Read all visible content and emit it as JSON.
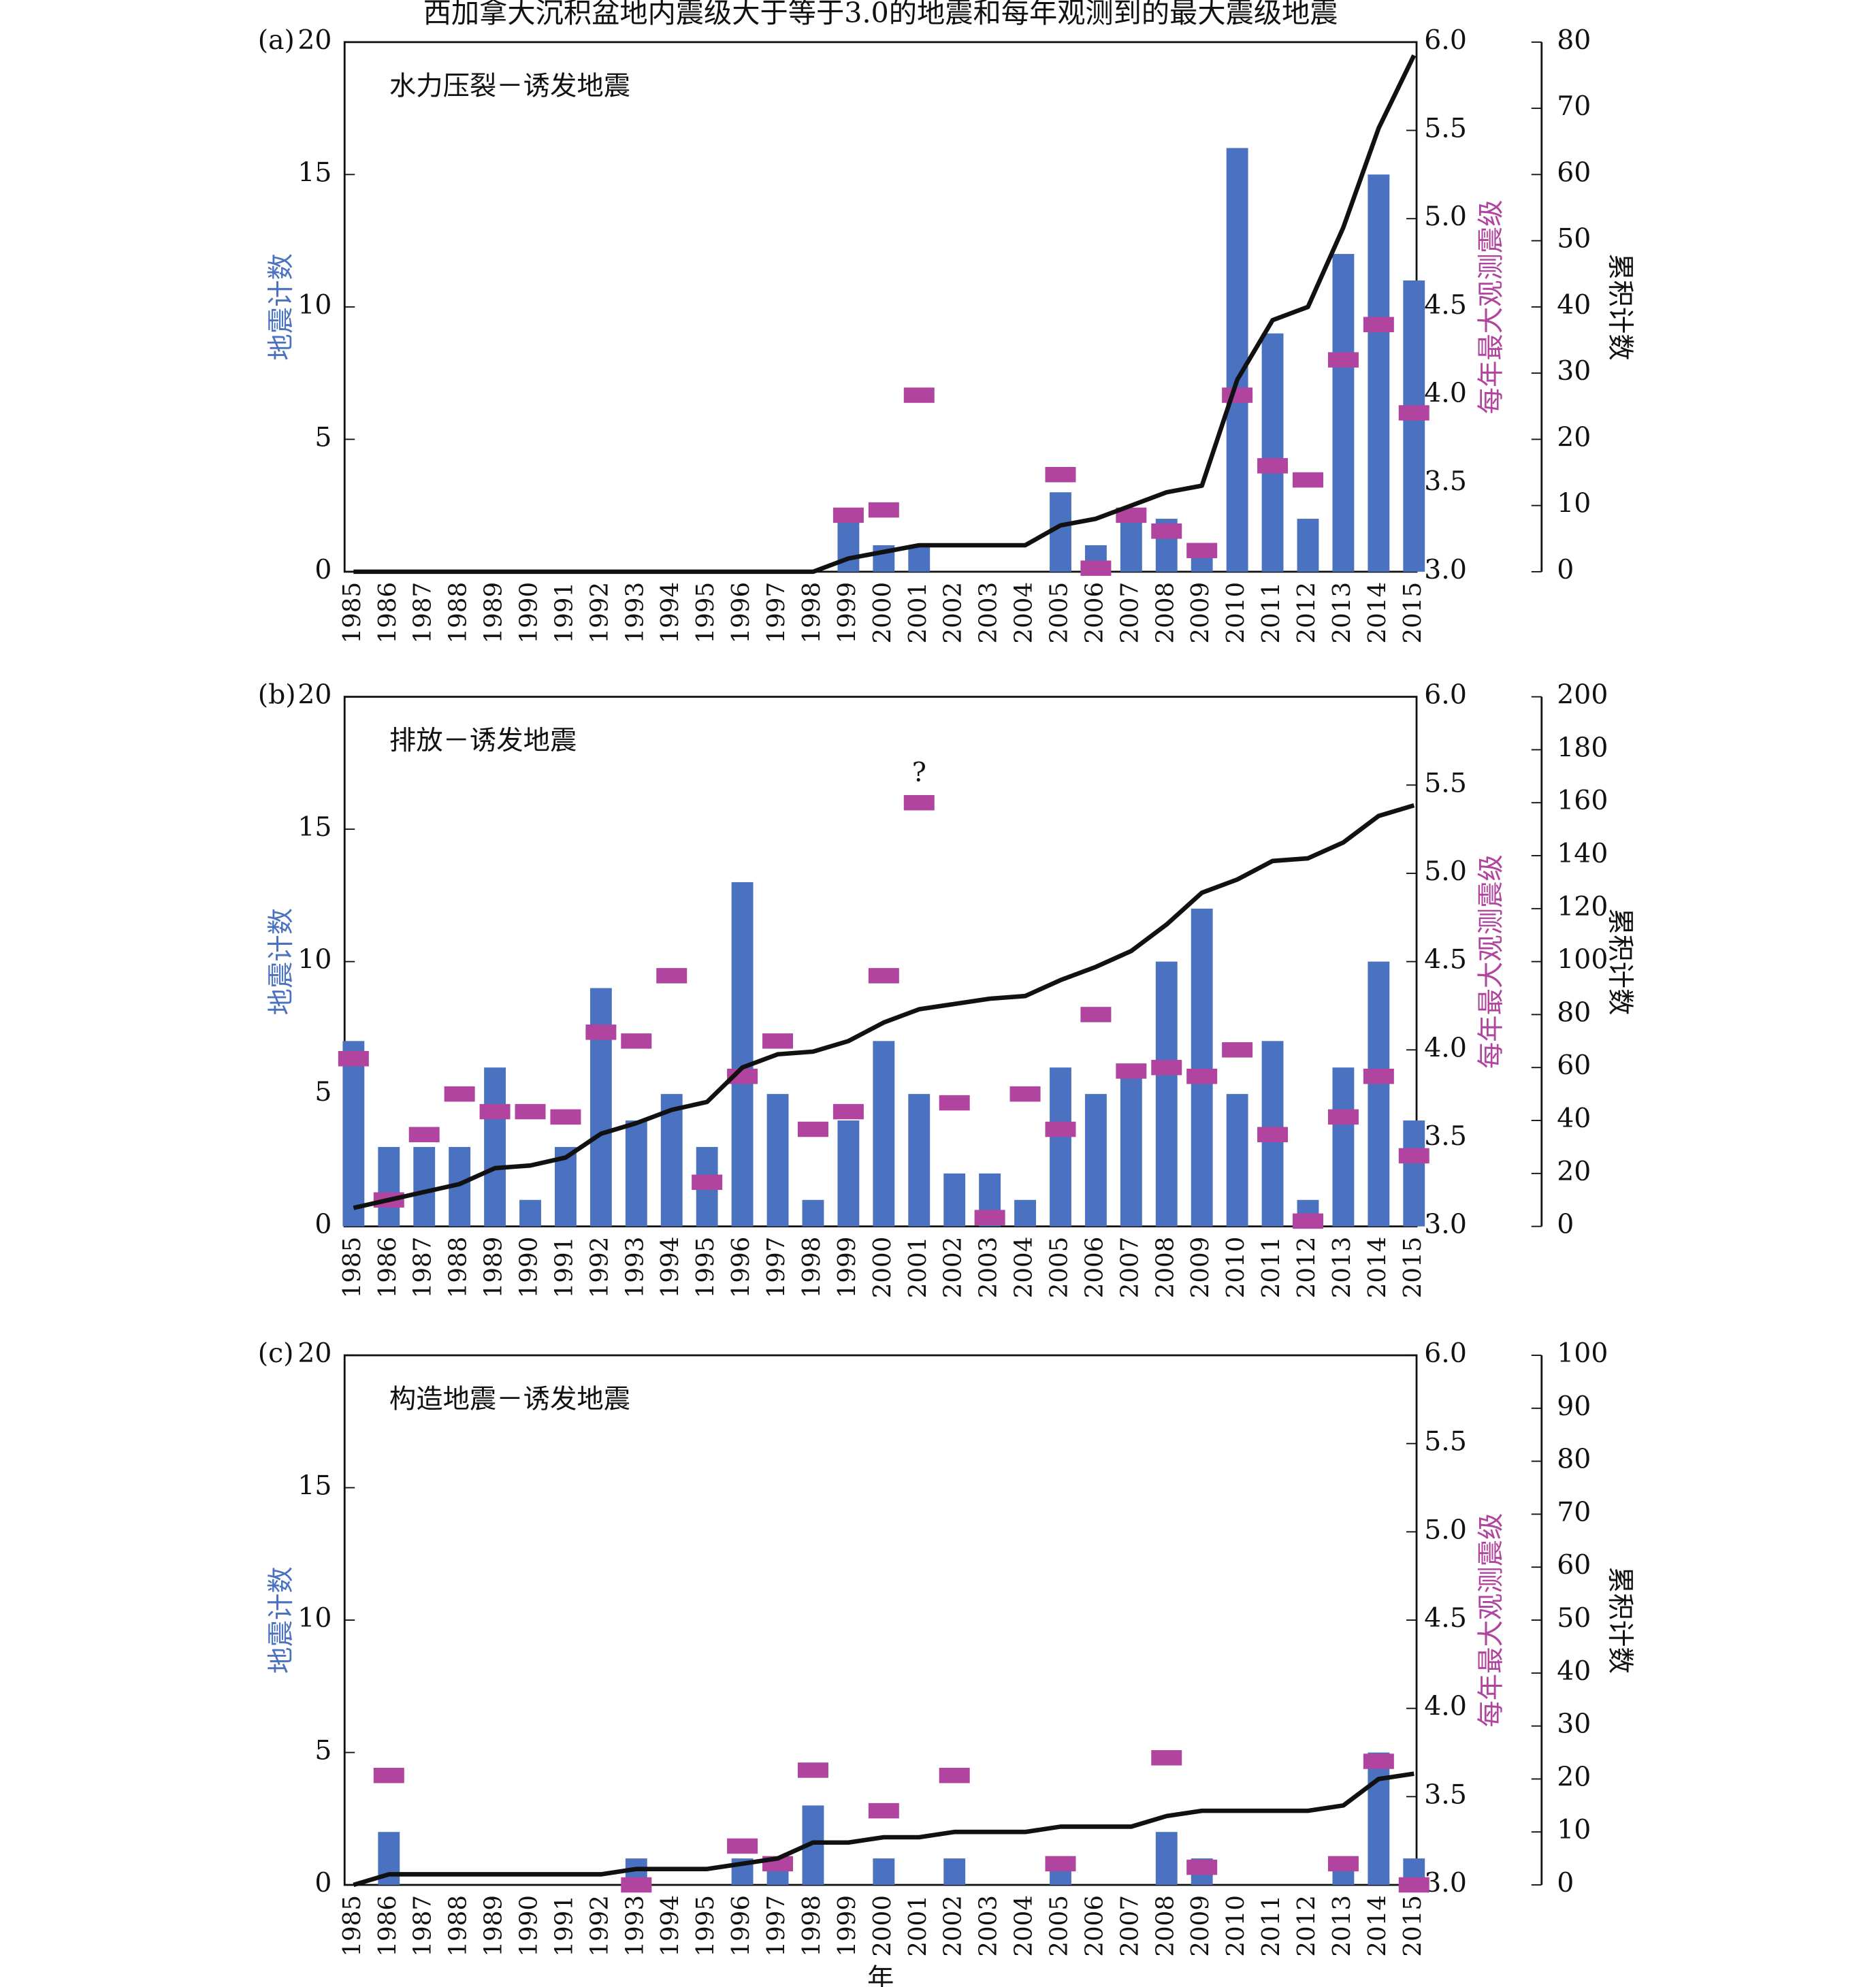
{
  "chart_data": [
    {
      "type": "combo",
      "title": "西加拿大沉积盆地内震级大于等于3.0的地震和每年观测到的最大震级地震",
      "panel_label": "(a)",
      "subtitle": "水力压裂－诱发地震",
      "ylabel": "地震计数",
      "y2label": "每年最大观测震级",
      "y3label": "累积计数",
      "categories": [
        "1985",
        "1986",
        "1987",
        "1988",
        "1989",
        "1990",
        "1991",
        "1992",
        "1993",
        "1994",
        "1995",
        "1996",
        "1997",
        "1998",
        "1999",
        "2000",
        "2001",
        "2002",
        "2003",
        "2004",
        "2005",
        "2006",
        "2007",
        "2008",
        "2009",
        "2010",
        "2011",
        "2012",
        "2013",
        "2014",
        "2015"
      ],
      "ylim": [
        0,
        20
      ],
      "yticks": [
        0,
        5,
        10,
        15,
        20
      ],
      "y2lim": [
        3,
        6
      ],
      "y2ticks": [
        {
          "value": 3,
          "label": "3.0"
        },
        3.5,
        {
          "value": 4,
          "label": "4.0"
        },
        4.5,
        {
          "value": 5,
          "label": "5.0"
        },
        5.5,
        {
          "value": 6,
          "label": "6.0"
        }
      ],
      "y3lim": [
        0,
        80
      ],
      "y3ticks": [
        0,
        10,
        20,
        30,
        40,
        50,
        60,
        70,
        80
      ],
      "series": [
        {
          "type": "bar",
          "color": "#4a72c0",
          "values": [
            0,
            0,
            0,
            0,
            0,
            0,
            0,
            0,
            0,
            0,
            0,
            0,
            0,
            0,
            2,
            1,
            1,
            0,
            0,
            0,
            3,
            1,
            2,
            2,
            1,
            16,
            9,
            2,
            12,
            15,
            11
          ]
        },
        {
          "type": "marker",
          "axis": "y2",
          "color": "#b0449e",
          "values": [
            null,
            null,
            null,
            null,
            null,
            null,
            null,
            null,
            null,
            null,
            null,
            null,
            null,
            null,
            3.32,
            3.35,
            4.0,
            null,
            null,
            null,
            3.55,
            3.02,
            3.32,
            3.23,
            3.12,
            4.0,
            3.6,
            3.52,
            4.2,
            4.4,
            3.9
          ]
        },
        {
          "type": "line",
          "axis": "y3",
          "color": "#111111",
          "values": [
            0,
            0,
            0,
            0,
            0,
            0,
            0,
            0,
            0,
            0,
            0,
            0,
            0,
            0,
            2,
            3,
            4,
            4,
            4,
            4,
            7,
            8,
            10,
            12,
            13,
            29,
            38,
            40,
            52,
            67,
            78
          ]
        }
      ]
    },
    {
      "type": "combo",
      "panel_label": "(b)",
      "subtitle": "排放－诱发地震",
      "ylabel": "地震计数",
      "y2label": "每年最大观测震级",
      "y3label": "累积计数",
      "categories": [
        "1985",
        "1986",
        "1987",
        "1988",
        "1989",
        "1990",
        "1991",
        "1992",
        "1993",
        "1994",
        "1995",
        "1996",
        "1997",
        "1998",
        "1999",
        "2000",
        "2001",
        "2002",
        "2003",
        "2004",
        "2005",
        "2006",
        "2007",
        "2008",
        "2009",
        "2010",
        "2011",
        "2012",
        "2013",
        "2014",
        "2015"
      ],
      "ylim": [
        0,
        20
      ],
      "yticks": [
        0,
        5,
        10,
        15,
        20
      ],
      "y2lim": [
        3,
        6
      ],
      "y2ticks": [
        {
          "value": 3,
          "label": "3.0"
        },
        3.5,
        {
          "value": 4,
          "label": "4.0"
        },
        4.5,
        {
          "value": 5,
          "label": "5.0"
        },
        5.5,
        {
          "value": 6,
          "label": "6.0"
        }
      ],
      "y3lim": [
        0,
        200
      ],
      "y3ticks": [
        0,
        20,
        40,
        60,
        80,
        100,
        120,
        140,
        160,
        180,
        200
      ],
      "annotations": [
        {
          "text": "?",
          "x": "2001"
        }
      ],
      "series": [
        {
          "type": "bar",
          "color": "#4a72c0",
          "values": [
            7,
            3,
            3,
            3,
            6,
            1,
            3,
            9,
            4,
            5,
            3,
            13,
            5,
            1,
            4,
            7,
            5,
            2,
            2,
            1,
            6,
            5,
            6,
            10,
            12,
            5,
            7,
            1,
            6,
            10,
            4
          ]
        },
        {
          "type": "marker",
          "axis": "y2",
          "color": "#b0449e",
          "values": [
            3.95,
            3.15,
            3.52,
            3.75,
            3.65,
            3.65,
            3.62,
            4.1,
            4.05,
            4.42,
            3.25,
            3.85,
            4.05,
            3.55,
            3.65,
            4.42,
            5.4,
            3.7,
            3.05,
            3.75,
            3.55,
            4.2,
            3.88,
            3.9,
            3.85,
            4.0,
            3.52,
            3.03,
            3.62,
            3.85,
            3.4
          ]
        },
        {
          "type": "line",
          "axis": "y3",
          "color": "#111111",
          "values": [
            7,
            10,
            13,
            16,
            22,
            23,
            26,
            35,
            39,
            44,
            47,
            60,
            65,
            66,
            70,
            77,
            82,
            84,
            86,
            87,
            93,
            98,
            104,
            114,
            126,
            131,
            138,
            139,
            145,
            155,
            159
          ]
        }
      ]
    },
    {
      "type": "combo",
      "panel_label": "(c)",
      "subtitle": "构造地震－诱发地震",
      "xlabel": "年",
      "ylabel": "地震计数",
      "y2label": "每年最大观测震级",
      "y3label": "累积计数",
      "categories": [
        "1985",
        "1986",
        "1987",
        "1988",
        "1989",
        "1990",
        "1991",
        "1992",
        "1993",
        "1994",
        "1995",
        "1996",
        "1997",
        "1998",
        "1999",
        "2000",
        "2001",
        "2002",
        "2003",
        "2004",
        "2005",
        "2006",
        "2007",
        "2008",
        "2009",
        "2010",
        "2011",
        "2012",
        "2013",
        "2014",
        "2015"
      ],
      "ylim": [
        0,
        20
      ],
      "yticks": [
        0,
        5,
        10,
        15,
        20
      ],
      "y2lim": [
        3,
        6
      ],
      "y2ticks": [
        {
          "value": 3,
          "label": "3.0"
        },
        3.5,
        {
          "value": 4,
          "label": "4.0"
        },
        4.5,
        {
          "value": 5,
          "label": "5.0"
        },
        5.5,
        {
          "value": 6,
          "label": "6.0"
        }
      ],
      "y3lim": [
        0,
        100
      ],
      "y3ticks": [
        0,
        10,
        20,
        30,
        40,
        50,
        60,
        70,
        80,
        90,
        100
      ],
      "series": [
        {
          "type": "bar",
          "color": "#4a72c0",
          "values": [
            0,
            2,
            0,
            0,
            0,
            0,
            0,
            0,
            1,
            0,
            0,
            1,
            1,
            3,
            0,
            1,
            0,
            1,
            0,
            0,
            1,
            0,
            0,
            2,
            1,
            0,
            0,
            0,
            1,
            5,
            1
          ]
        },
        {
          "type": "marker",
          "axis": "y2",
          "color": "#b0449e",
          "values": [
            null,
            3.62,
            null,
            null,
            null,
            null,
            null,
            null,
            3.0,
            null,
            null,
            3.22,
            3.12,
            3.65,
            null,
            3.42,
            null,
            3.62,
            null,
            null,
            3.12,
            null,
            null,
            3.72,
            3.1,
            null,
            null,
            null,
            3.12,
            3.7,
            3.0
          ]
        },
        {
          "type": "line",
          "axis": "y3",
          "color": "#111111",
          "values": [
            0,
            2,
            2,
            2,
            2,
            2,
            2,
            2,
            3,
            3,
            3,
            4,
            5,
            8,
            8,
            9,
            9,
            10,
            10,
            10,
            11,
            11,
            11,
            13,
            14,
            14,
            14,
            14,
            15,
            20,
            21
          ]
        }
      ]
    }
  ]
}
